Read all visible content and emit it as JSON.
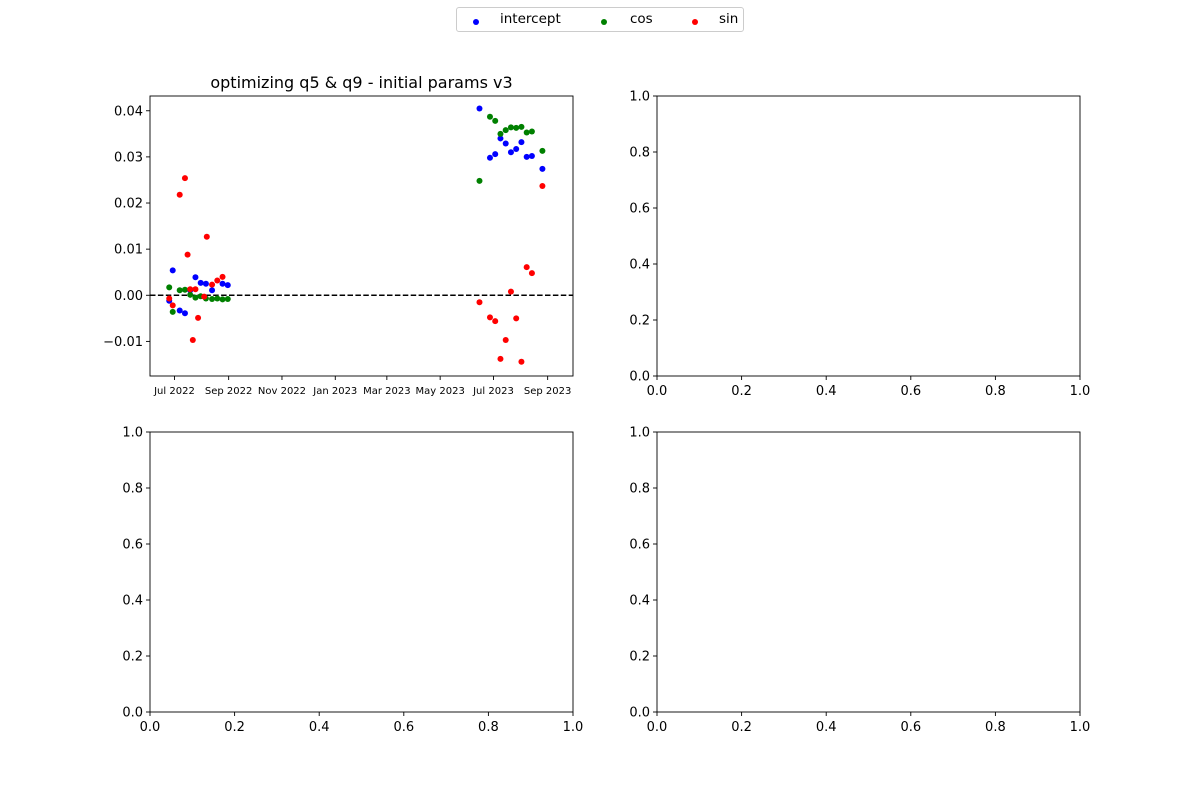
{
  "legend": {
    "items": [
      {
        "label": "intercept",
        "color": "#0000ff"
      },
      {
        "label": "cos",
        "color": "#008000"
      },
      {
        "label": "sin",
        "color": "#ff0000"
      }
    ]
  },
  "chart_data": [
    {
      "type": "scatter",
      "title": "optimizing q5 & q9 - initial params v3",
      "xlabel": "",
      "ylabel": "",
      "x_scale": "date",
      "x_range": [
        "2022-06-03",
        "2023-09-30"
      ],
      "ylim": [
        -0.0175,
        0.0432
      ],
      "xticks": [
        {
          "date": "2022-07-01",
          "label": "Jul 2022"
        },
        {
          "date": "2022-09-01",
          "label": "Sep 2022"
        },
        {
          "date": "2022-11-01",
          "label": "Nov 2022"
        },
        {
          "date": "2023-01-01",
          "label": "Jan 2023"
        },
        {
          "date": "2023-03-01",
          "label": "Mar 2023"
        },
        {
          "date": "2023-05-01",
          "label": "May 2023"
        },
        {
          "date": "2023-07-01",
          "label": "Jul 2023"
        },
        {
          "date": "2023-09-01",
          "label": "Sep 2023"
        }
      ],
      "yticks": [
        {
          "value": -0.01,
          "label": "−0.01"
        },
        {
          "value": 0.0,
          "label": "0.00"
        },
        {
          "value": 0.01,
          "label": "0.01"
        },
        {
          "value": 0.02,
          "label": "0.02"
        },
        {
          "value": 0.03,
          "label": "0.03"
        },
        {
          "value": 0.04,
          "label": "0.04"
        }
      ],
      "reference_line": {
        "y": 0,
        "style": "dashed",
        "color": "#000000"
      },
      "series": [
        {
          "name": "intercept",
          "color": "#0000ff",
          "points": [
            [
              "2022-06-25",
              -0.0012
            ],
            [
              "2022-06-29",
              0.0054
            ],
            [
              "2022-07-07",
              -0.0033
            ],
            [
              "2022-07-13",
              -0.0039
            ],
            [
              "2022-07-19",
              0.0011
            ],
            [
              "2022-07-25",
              0.0039
            ],
            [
              "2022-07-31",
              0.0027
            ],
            [
              "2022-08-06",
              0.0025
            ],
            [
              "2022-08-13",
              0.0011
            ],
            [
              "2022-08-25",
              0.0025
            ],
            [
              "2022-08-31",
              0.0022
            ],
            [
              "2023-06-15",
              0.0405
            ],
            [
              "2023-06-27",
              0.0298
            ],
            [
              "2023-07-03",
              0.0306
            ],
            [
              "2023-07-09",
              0.034
            ],
            [
              "2023-07-15",
              0.0329
            ],
            [
              "2023-07-21",
              0.031
            ],
            [
              "2023-07-27",
              0.0317
            ],
            [
              "2023-08-02",
              0.0332
            ],
            [
              "2023-08-08",
              0.03
            ],
            [
              "2023-08-14",
              0.0302
            ],
            [
              "2023-08-26",
              0.0274
            ]
          ]
        },
        {
          "name": "cos",
          "color": "#008000",
          "points": [
            [
              "2022-06-25",
              0.0017
            ],
            [
              "2022-06-29",
              -0.0036
            ],
            [
              "2022-07-07",
              0.0011
            ],
            [
              "2022-07-13",
              0.0012
            ],
            [
              "2022-07-19",
              0.0001
            ],
            [
              "2022-07-25",
              -0.0005
            ],
            [
              "2022-07-31",
              -0.0002
            ],
            [
              "2022-08-06",
              -0.0007
            ],
            [
              "2022-08-13",
              -0.0008
            ],
            [
              "2022-08-19",
              -0.0007
            ],
            [
              "2022-08-25",
              -0.0009
            ],
            [
              "2022-08-31",
              -0.0008
            ],
            [
              "2023-06-15",
              0.0248
            ],
            [
              "2023-06-27",
              0.0387
            ],
            [
              "2023-07-03",
              0.0378
            ],
            [
              "2023-07-09",
              0.035
            ],
            [
              "2023-07-15",
              0.0358
            ],
            [
              "2023-07-21",
              0.0364
            ],
            [
              "2023-07-27",
              0.0363
            ],
            [
              "2023-08-02",
              0.0365
            ],
            [
              "2023-08-08",
              0.0353
            ],
            [
              "2023-08-14",
              0.0355
            ],
            [
              "2023-08-26",
              0.0313
            ]
          ]
        },
        {
          "name": "sin",
          "color": "#ff0000",
          "points": [
            [
              "2022-06-25",
              -0.0007
            ],
            [
              "2022-06-29",
              -0.0022
            ],
            [
              "2022-07-07",
              0.0218
            ],
            [
              "2022-07-13",
              0.0254
            ],
            [
              "2022-07-16",
              0.0088
            ],
            [
              "2022-07-19",
              0.0013
            ],
            [
              "2022-07-22",
              -0.0097
            ],
            [
              "2022-07-25",
              0.0013
            ],
            [
              "2022-07-28",
              -0.0049
            ],
            [
              "2022-08-04",
              -0.0003
            ],
            [
              "2022-08-07",
              0.0127
            ],
            [
              "2022-08-13",
              0.0023
            ],
            [
              "2022-08-19",
              0.0032
            ],
            [
              "2022-08-25",
              0.004
            ],
            [
              "2023-06-15",
              -0.0015
            ],
            [
              "2023-06-27",
              -0.0048
            ],
            [
              "2023-07-03",
              -0.0056
            ],
            [
              "2023-07-09",
              -0.0138
            ],
            [
              "2023-07-15",
              -0.0097
            ],
            [
              "2023-07-21",
              0.0008
            ],
            [
              "2023-07-27",
              -0.005
            ],
            [
              "2023-08-02",
              -0.0144
            ],
            [
              "2023-08-08",
              0.0061
            ],
            [
              "2023-08-14",
              0.0048
            ],
            [
              "2023-08-26",
              0.0237
            ]
          ]
        }
      ]
    },
    {
      "type": "scatter",
      "title": "",
      "xlabel": "",
      "ylabel": "",
      "series": [],
      "xlim": [
        0,
        1
      ],
      "ylim": [
        0,
        1
      ],
      "xticks": [
        "0.0",
        "0.2",
        "0.4",
        "0.6",
        "0.8",
        "1.0"
      ],
      "yticks": [
        "0.0",
        "0.2",
        "0.4",
        "0.6",
        "0.8",
        "1.0"
      ]
    },
    {
      "type": "scatter",
      "title": "",
      "xlabel": "",
      "ylabel": "",
      "series": [],
      "xlim": [
        0,
        1
      ],
      "ylim": [
        0,
        1
      ],
      "xticks": [
        "0.0",
        "0.2",
        "0.4",
        "0.6",
        "0.8",
        "1.0"
      ],
      "yticks": [
        "0.0",
        "0.2",
        "0.4",
        "0.6",
        "0.8",
        "1.0"
      ]
    },
    {
      "type": "scatter",
      "title": "",
      "xlabel": "",
      "ylabel": "",
      "series": [],
      "xlim": [
        0,
        1
      ],
      "ylim": [
        0,
        1
      ],
      "xticks": [
        "0.0",
        "0.2",
        "0.4",
        "0.6",
        "0.8",
        "1.0"
      ],
      "yticks": [
        "0.0",
        "0.2",
        "0.4",
        "0.6",
        "0.8",
        "1.0"
      ]
    }
  ]
}
